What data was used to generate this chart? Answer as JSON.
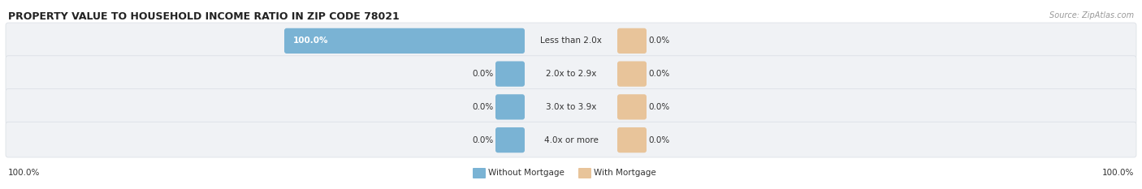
{
  "title": "PROPERTY VALUE TO HOUSEHOLD INCOME RATIO IN ZIP CODE 78021",
  "source": "Source: ZipAtlas.com",
  "categories": [
    "Less than 2.0x",
    "2.0x to 2.9x",
    "3.0x to 3.9x",
    "4.0x or more"
  ],
  "without_mortgage": [
    100.0,
    0.0,
    0.0,
    0.0
  ],
  "with_mortgage": [
    0.0,
    0.0,
    0.0,
    0.0
  ],
  "bar_color_without": "#7ab3d4",
  "bar_color_with": "#e8c49a",
  "bg_color": "#ffffff",
  "row_bg_color": "#f0f2f5",
  "title_color": "#222222",
  "source_color": "#999999",
  "label_color": "#333333",
  "value_color": "#333333",
  "figsize": [
    14.06,
    2.33
  ],
  "dpi": 100
}
